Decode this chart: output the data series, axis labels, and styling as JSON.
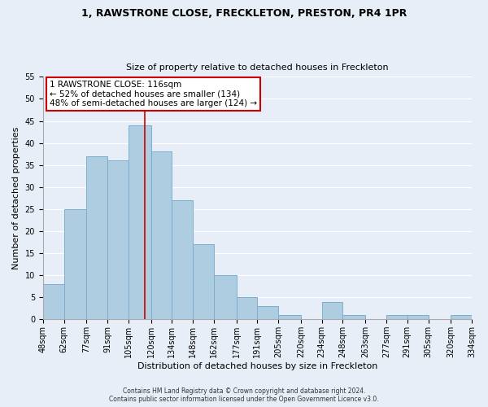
{
  "title1": "1, RAWSTRONE CLOSE, FRECKLETON, PRESTON, PR4 1PR",
  "title2": "Size of property relative to detached houses in Freckleton",
  "xlabel": "Distribution of detached houses by size in Freckleton",
  "ylabel": "Number of detached properties",
  "bin_edges": [
    48,
    62,
    77,
    91,
    105,
    120,
    134,
    148,
    162,
    177,
    191,
    205,
    220,
    234,
    248,
    263,
    277,
    291,
    305,
    320,
    334
  ],
  "bar_heights": [
    8,
    25,
    37,
    36,
    44,
    38,
    27,
    17,
    10,
    5,
    3,
    1,
    0,
    4,
    1,
    0,
    1,
    1,
    0,
    1
  ],
  "bar_color": "#aecde0",
  "bar_edge_color": "#7baecf",
  "property_line_x": 116,
  "property_line_color": "#cc0000",
  "annotation_title": "1 RAWSTRONE CLOSE: 116sqm",
  "annotation_line1": "← 52% of detached houses are smaller (134)",
  "annotation_line2": "48% of semi-detached houses are larger (124) →",
  "annotation_box_facecolor": "#ffffff",
  "annotation_box_edgecolor": "#cc0000",
  "ylim": [
    0,
    55
  ],
  "yticks": [
    0,
    5,
    10,
    15,
    20,
    25,
    30,
    35,
    40,
    45,
    50,
    55
  ],
  "footer_line1": "Contains HM Land Registry data © Crown copyright and database right 2024.",
  "footer_line2": "Contains public sector information licensed under the Open Government Licence v3.0.",
  "background_color": "#e8eef8",
  "grid_color": "#ffffff",
  "title1_fontsize": 9,
  "title2_fontsize": 8,
  "xlabel_fontsize": 8,
  "ylabel_fontsize": 8,
  "tick_fontsize": 7,
  "footer_fontsize": 5.5,
  "annotation_fontsize": 7.5
}
